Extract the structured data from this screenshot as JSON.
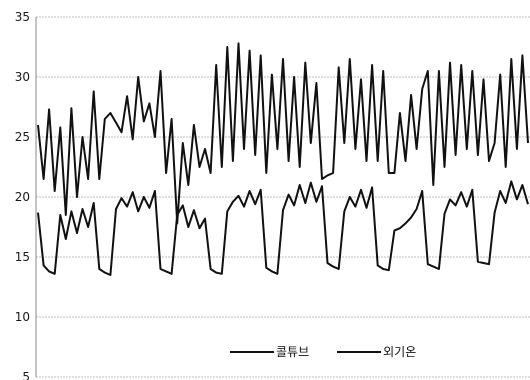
{
  "chart_data": {
    "type": "line",
    "ylim": [
      5,
      35
    ],
    "yticks": [
      5,
      10,
      15,
      20,
      25,
      30,
      35
    ],
    "ytick_labels": [
      "5",
      "10",
      "15",
      "20",
      "25",
      "30",
      "35"
    ],
    "grid": true,
    "legend_position": "bottom-center",
    "series": [
      {
        "name": "콜튜브",
        "color": "#111111",
        "values": [
          18.7,
          14.3,
          13.8,
          13.6,
          18.5,
          16.5,
          18.8,
          17.0,
          19.0,
          17.5,
          19.5,
          14.0,
          13.7,
          13.5,
          19.0,
          19.9,
          19.2,
          20.4,
          18.8,
          20.0,
          19.1,
          20.5,
          14.0,
          13.8,
          13.6,
          18.5,
          19.3,
          17.5,
          18.9,
          17.4,
          18.2,
          14.0,
          13.7,
          13.6,
          18.8,
          19.6,
          20.1,
          19.2,
          20.5,
          19.4,
          20.6,
          14.1,
          13.8,
          13.6,
          18.9,
          20.2,
          19.3,
          21.0,
          19.5,
          21.2,
          19.6,
          20.9,
          14.5,
          14.2,
          14.0,
          18.8,
          20.0,
          19.2,
          20.6,
          19.1,
          20.8,
          14.3,
          14.0,
          13.9,
          17.2,
          17.4,
          17.8,
          18.3,
          19.0,
          20.5,
          14.4,
          14.2,
          14.0,
          18.6,
          19.8,
          19.3,
          20.4,
          19.2,
          20.6,
          14.6,
          14.5,
          14.4,
          18.7,
          20.5,
          19.5,
          21.3,
          19.8,
          21.0,
          19.4
        ]
      },
      {
        "name": "외기온",
        "color": "#111111",
        "values": [
          26.0,
          21.5,
          27.3,
          20.5,
          25.8,
          18.5,
          27.4,
          20.0,
          25.0,
          21.5,
          28.8,
          21.5,
          26.5,
          27.0,
          26.2,
          25.4,
          28.4,
          24.8,
          30.0,
          26.3,
          27.8,
          25.0,
          30.5,
          22.0,
          26.5,
          17.8,
          24.5,
          21.0,
          26.0,
          22.5,
          24.0,
          22.0,
          31.0,
          22.5,
          32.5,
          23.0,
          32.8,
          24.0,
          32.2,
          23.5,
          31.8,
          22.0,
          30.2,
          24.0,
          31.5,
          23.0,
          30.0,
          22.5,
          31.2,
          24.5,
          29.5,
          21.5,
          21.8,
          22.0,
          30.8,
          24.5,
          31.5,
          24.0,
          29.8,
          23.0,
          31.0,
          23.0,
          30.5,
          22.0,
          22.0,
          27.0,
          23.0,
          28.5,
          24.0,
          29.0,
          30.5,
          21.0,
          30.5,
          22.5,
          31.2,
          23.5,
          31.0,
          24.0,
          30.5,
          23.5,
          29.8,
          23.0,
          24.5,
          30.2,
          22.5,
          31.5,
          24.0,
          31.8,
          24.5
        ]
      }
    ]
  }
}
